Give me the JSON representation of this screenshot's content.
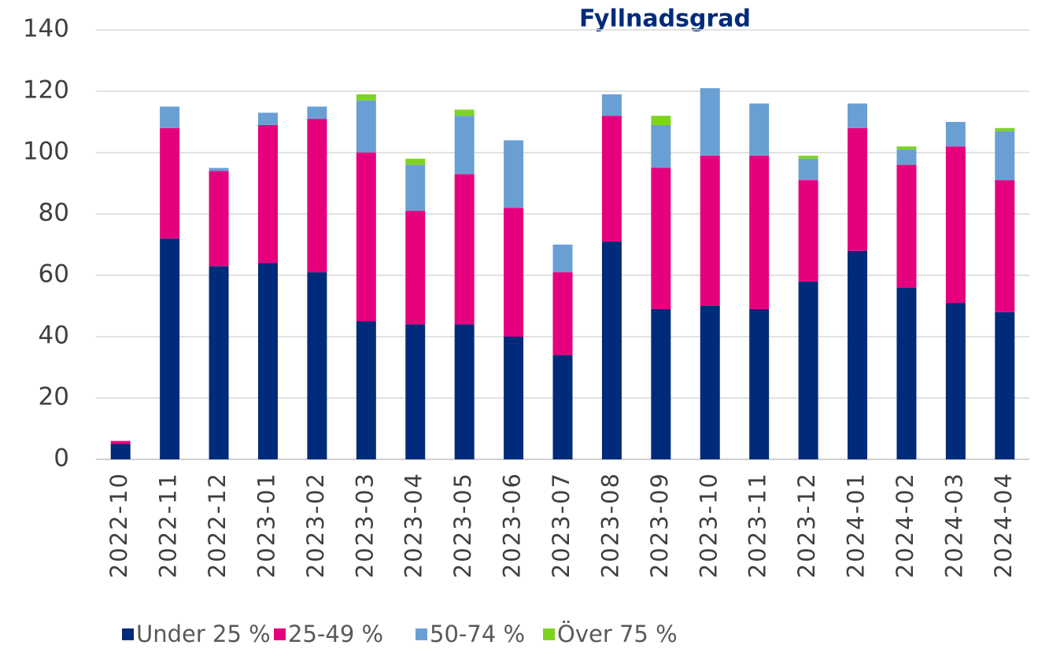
{
  "chart_data": {
    "type": "bar",
    "stacked": true,
    "title": "Fyllnadsgrad",
    "categories": [
      "2022-10",
      "2022-11",
      "2022-12",
      "2023-01",
      "2023-02",
      "2023-03",
      "2023-04",
      "2023-05",
      "2023-06",
      "2023-07",
      "2023-08",
      "2023-09",
      "2023-10",
      "2023-11",
      "2023-12",
      "2024-01",
      "2024-02",
      "2024-03",
      "2024-04"
    ],
    "series": [
      {
        "name": "Under 25 %",
        "color": "#002b7a",
        "values": [
          5,
          72,
          63,
          64,
          61,
          45,
          44,
          44,
          40,
          34,
          71,
          49,
          50,
          49,
          58,
          68,
          56,
          51,
          48
        ]
      },
      {
        "name": "25-49 %",
        "color": "#e6007e",
        "values": [
          1,
          36,
          31,
          45,
          50,
          55,
          37,
          49,
          42,
          27,
          41,
          46,
          49,
          50,
          33,
          40,
          40,
          51,
          43
        ]
      },
      {
        "name": "50-74 %",
        "color": "#6a9fd4",
        "values": [
          0,
          7,
          1,
          4,
          4,
          17,
          15,
          19,
          22,
          9,
          7,
          14,
          22,
          17,
          7,
          8,
          5,
          8,
          16
        ]
      },
      {
        "name": "Över 75 %",
        "color": "#7ed321",
        "values": [
          0,
          0,
          0,
          0,
          0,
          2,
          2,
          2,
          0,
          0,
          0,
          3,
          0,
          0,
          1,
          0,
          1,
          0,
          1
        ]
      }
    ],
    "ylim": [
      0,
      140
    ],
    "yticks": [
      0,
      20,
      40,
      60,
      80,
      100,
      120,
      140
    ],
    "grid": true,
    "legend": "bottom"
  }
}
